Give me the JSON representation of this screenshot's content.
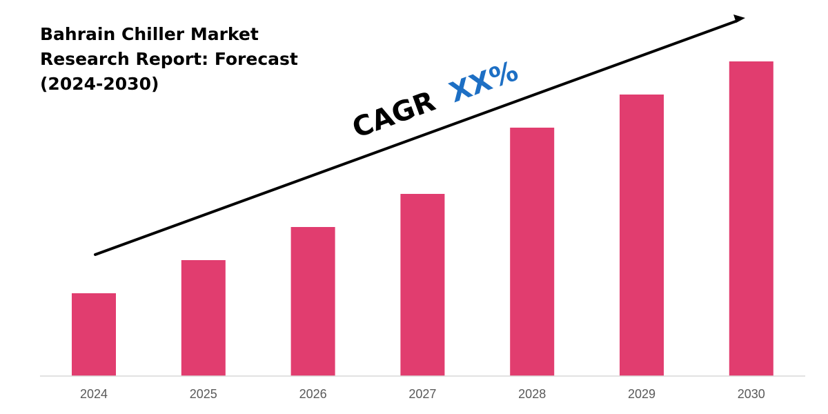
{
  "chart_data": {
    "type": "bar",
    "title": "Bahrain Chiller Market Research Report: Forecast (2024-2030)",
    "title_lines": [
      "Bahrain Chiller Market",
      "Research Report: Forecast",
      "(2024-2030)"
    ],
    "categories": [
      "2024",
      "2025",
      "2026",
      "2027",
      "2028",
      "2029",
      "2030"
    ],
    "values": [
      20,
      28,
      36,
      44,
      60,
      68,
      76
    ],
    "ylim": [
      0,
      80
    ],
    "xlabel": "",
    "ylabel": "",
    "grid": false,
    "legend": "none",
    "annotation": {
      "prefix": "CAGR",
      "value": "XX%"
    },
    "colors": {
      "bar": "#e13d6f",
      "axis": "#d9d9d9",
      "arrow": "#000000",
      "cagr_prefix": "#000000",
      "cagr_value": "#1d6fc4"
    }
  }
}
